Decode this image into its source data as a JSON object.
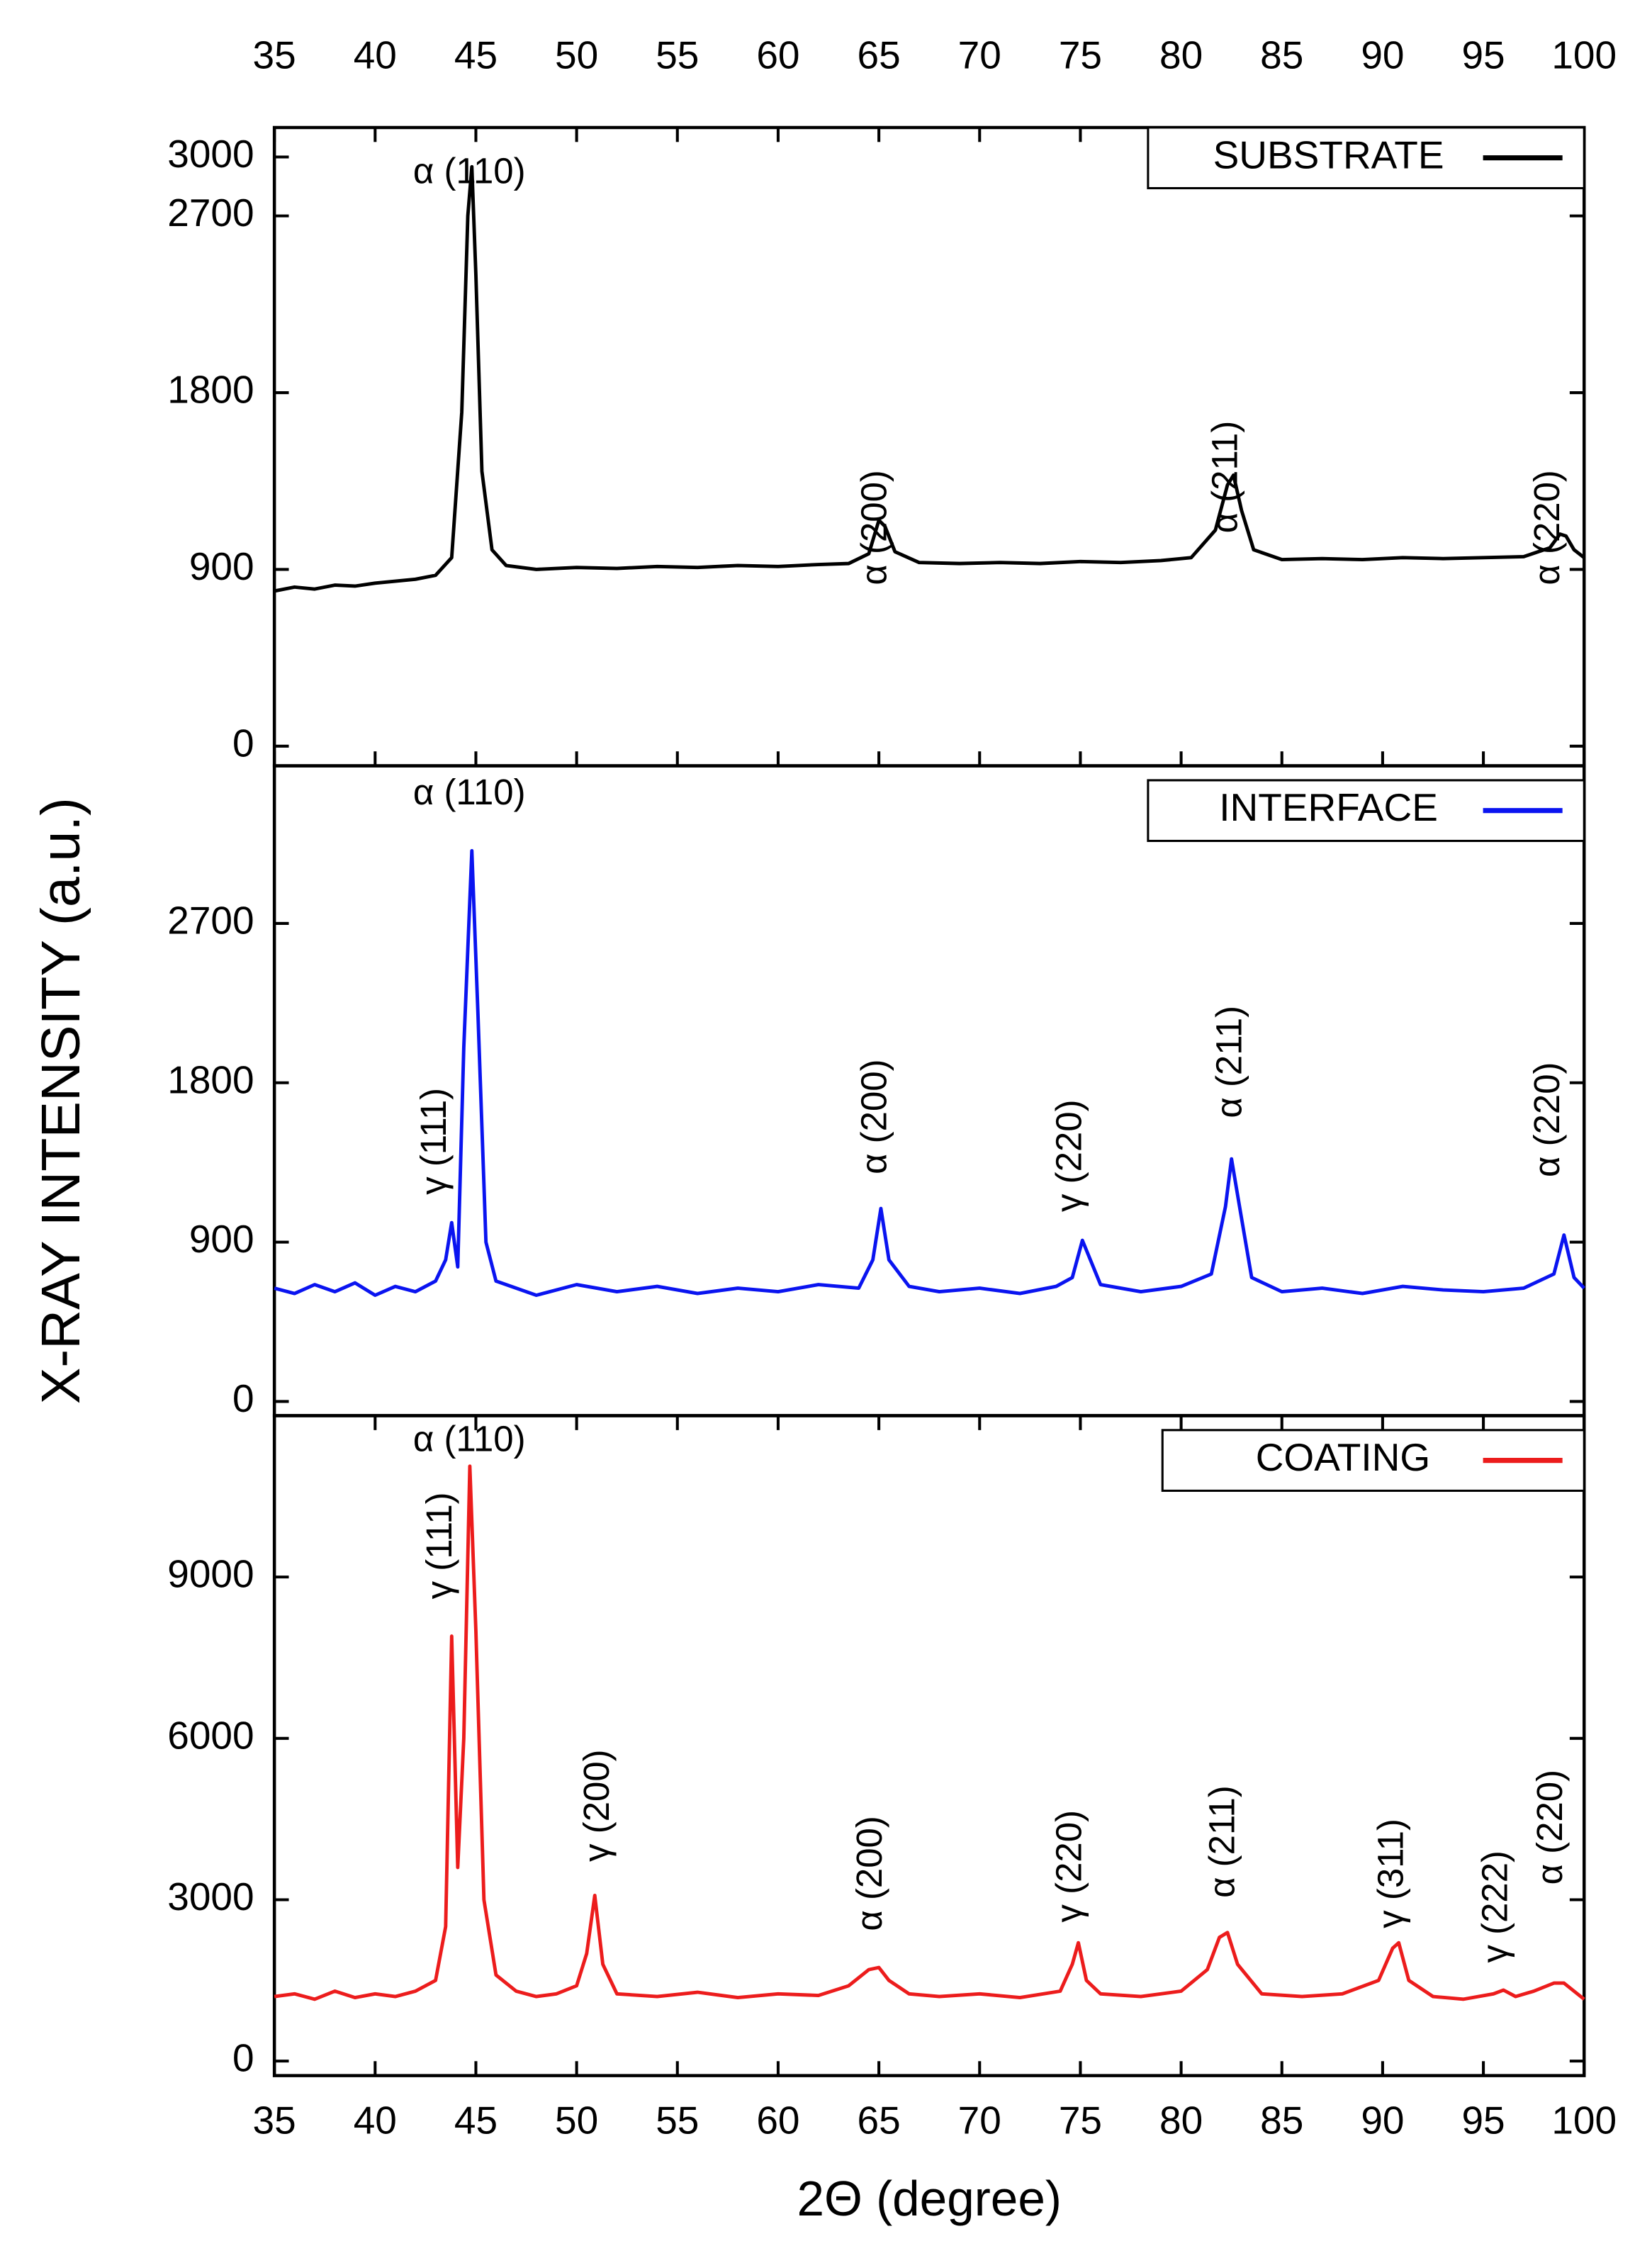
{
  "chart_data": [
    {
      "type": "line",
      "xlim": [
        35,
        100
      ],
      "xticks": [
        35,
        40,
        45,
        50,
        55,
        60,
        65,
        70,
        75,
        80,
        85,
        90,
        95,
        100
      ],
      "ylim": [
        -100,
        3150
      ],
      "yticks": [
        0,
        900,
        1800,
        2700,
        3000
      ],
      "legend": "upper right",
      "x": [
        35,
        36,
        37,
        38,
        39,
        40,
        41,
        42,
        43,
        43.8,
        44.3,
        44.6,
        44.8,
        45.0,
        45.3,
        45.8,
        46.5,
        48,
        50,
        52,
        54,
        56,
        58,
        60,
        62,
        63.5,
        64.5,
        65.0,
        65.3,
        65.8,
        67,
        69,
        71,
        73,
        75,
        77,
        79,
        80.5,
        81.7,
        82.3,
        82.6,
        83.0,
        83.6,
        85,
        87,
        89,
        91,
        93,
        95,
        97,
        98.3,
        98.8,
        99.1,
        99.5,
        100
      ],
      "series": [
        {
          "name": "SUBSTRATE",
          "color": "#000000",
          "values": [
            790,
            810,
            800,
            820,
            815,
            830,
            840,
            850,
            870,
            960,
            1700,
            2700,
            2950,
            2400,
            1400,
            1000,
            920,
            900,
            910,
            905,
            915,
            910,
            920,
            915,
            925,
            930,
            980,
            1150,
            1120,
            990,
            935,
            930,
            935,
            930,
            940,
            935,
            945,
            960,
            1100,
            1330,
            1380,
            1200,
            1000,
            950,
            955,
            950,
            960,
            955,
            960,
            965,
            1010,
            1080,
            1070,
            1000,
            960
          ]
        }
      ],
      "annotations": [
        "α (110)",
        "α (200)",
        "α (211)",
        "α (220)"
      ]
    },
    {
      "type": "line",
      "xlim": [
        35,
        100
      ],
      "ylim": [
        -80,
        3590
      ],
      "yticks": [
        0,
        900,
        1800,
        2700
      ],
      "legend": "upper right",
      "ylabel": "X-RAY INTENSITY (a.u.)",
      "x": [
        35,
        36,
        37,
        38,
        39,
        40,
        41,
        42,
        43,
        43.5,
        43.8,
        44.1,
        44.4,
        44.8,
        45.1,
        45.5,
        46,
        47,
        48,
        50,
        52,
        54,
        56,
        58,
        60,
        62,
        64,
        64.7,
        65.1,
        65.5,
        66.5,
        68,
        70,
        72,
        73.8,
        74.6,
        75.1,
        76,
        78,
        80,
        81.5,
        82.2,
        82.5,
        82.9,
        83.5,
        85,
        87,
        89,
        91,
        93,
        95,
        97,
        98.5,
        99,
        99.5,
        100
      ],
      "series": [
        {
          "name": "INTERFACE",
          "color": "#0a14f0",
          "values": [
            640,
            610,
            660,
            620,
            670,
            600,
            650,
            620,
            680,
            800,
            1010,
            760,
            2000,
            3110,
            2200,
            900,
            680,
            640,
            600,
            660,
            620,
            650,
            610,
            640,
            620,
            660,
            640,
            800,
            1090,
            800,
            650,
            620,
            640,
            610,
            650,
            700,
            910,
            660,
            620,
            650,
            720,
            1100,
            1370,
            1100,
            700,
            620,
            640,
            610,
            650,
            630,
            620,
            640,
            720,
            940,
            700,
            640
          ]
        }
      ],
      "annotations": [
        "α (110)",
        "γ (111)",
        "α (200)",
        "γ (220)",
        "α (211)",
        "α (220)"
      ]
    },
    {
      "type": "line",
      "xlim": [
        35,
        100
      ],
      "xticks": [
        35,
        40,
        45,
        50,
        55,
        60,
        65,
        70,
        75,
        80,
        85,
        90,
        95,
        100
      ],
      "ylim": [
        -270,
        12000
      ],
      "yticks": [
        0,
        3000,
        6000,
        9000
      ],
      "legend": "upper right",
      "xlabel": "2Θ (degree)",
      "x": [
        35,
        36,
        37,
        38,
        39,
        40,
        41,
        42,
        43,
        43.5,
        43.8,
        44.1,
        44.4,
        44.7,
        45.0,
        45.4,
        46,
        47,
        48,
        49,
        50,
        50.5,
        50.9,
        51.3,
        52,
        54,
        56,
        58,
        60,
        62,
        63.5,
        64.5,
        65,
        65.5,
        66.5,
        68,
        70,
        72,
        74,
        74.6,
        74.9,
        75.3,
        76,
        78,
        80,
        81.3,
        81.9,
        82.3,
        82.8,
        84,
        86,
        88,
        89.8,
        90.5,
        90.8,
        91.3,
        92.5,
        94,
        95.5,
        96,
        96.6,
        97.5,
        98.5,
        99,
        99.5,
        100
      ],
      "series": [
        {
          "name": "COATING",
          "color": "#ec1c1c",
          "values": [
            1200,
            1250,
            1150,
            1300,
            1180,
            1250,
            1200,
            1300,
            1500,
            2500,
            7900,
            3600,
            6000,
            11060,
            8000,
            3000,
            1600,
            1300,
            1200,
            1250,
            1400,
            2000,
            3080,
            1800,
            1250,
            1200,
            1280,
            1180,
            1250,
            1220,
            1400,
            1700,
            1740,
            1500,
            1250,
            1200,
            1250,
            1180,
            1300,
            1800,
            2200,
            1500,
            1250,
            1200,
            1300,
            1700,
            2300,
            2390,
            1800,
            1250,
            1200,
            1250,
            1500,
            2100,
            2200,
            1500,
            1200,
            1150,
            1250,
            1320,
            1200,
            1300,
            1450,
            1450,
            1300,
            1150
          ]
        }
      ],
      "annotations": [
        "α (110)",
        "γ (111)",
        "γ (200)",
        "α (200)",
        "γ (220)",
        "α (211)",
        "γ (311)",
        "γ (222)",
        "α (220)"
      ]
    }
  ]
}
